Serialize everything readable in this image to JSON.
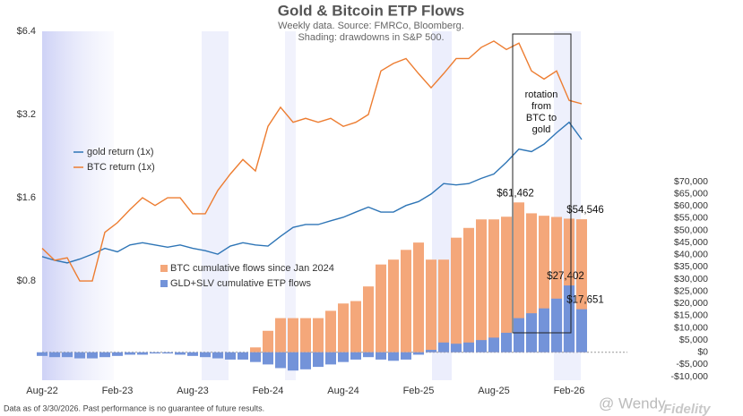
{
  "chart_data": {
    "type": "line",
    "title": "Gold & Bitcoin ETP Flows",
    "subtitle": [
      "Weekly data.  Source: FMRCo, Bloomberg.",
      "Shading: drawdowns in S&P 500."
    ],
    "categories": [
      "Aug-22",
      null,
      null,
      null,
      null,
      null,
      "Feb-23",
      null,
      null,
      null,
      null,
      null,
      "Aug-23",
      null,
      null,
      null,
      null,
      null,
      "Feb-24",
      null,
      null,
      null,
      null,
      null,
      "Aug-24",
      null,
      null,
      null,
      null,
      null,
      "Feb-25",
      null,
      null,
      null,
      null,
      null,
      "Aug-25",
      null,
      null,
      null,
      null,
      null,
      "Feb-26",
      null
    ],
    "log_scale": true,
    "ylim": [
      0.35,
      6.4
    ],
    "yticks": [
      {
        "value": 0.8,
        "label": "$0.8"
      },
      {
        "value": 1.6,
        "label": "$1.6"
      },
      {
        "value": 3.2,
        "label": "$3.2"
      },
      {
        "value": 6.4,
        "label": "$6.4"
      }
    ],
    "y2lim": [
      -10000,
      70000
    ],
    "y2ticks": [
      {
        "value": -10000,
        "label": "-$10,000"
      },
      {
        "value": -5000,
        "label": "-$5,000"
      },
      {
        "value": 0,
        "label": "$0"
      },
      {
        "value": 5000,
        "label": "$5,000"
      },
      {
        "value": 10000,
        "label": "$10,000"
      },
      {
        "value": 15000,
        "label": "$15,000"
      },
      {
        "value": 20000,
        "label": "$20,000"
      },
      {
        "value": 25000,
        "label": "$25,000"
      },
      {
        "value": 30000,
        "label": "$30,000"
      },
      {
        "value": 35000,
        "label": "$35,000"
      },
      {
        "value": 40000,
        "label": "$40,000"
      },
      {
        "value": 45000,
        "label": "$45,000"
      },
      {
        "value": 50000,
        "label": "$50,000"
      },
      {
        "value": 55000,
        "label": "$55,000"
      },
      {
        "value": 60000,
        "label": "$60,000"
      },
      {
        "value": 65000,
        "label": "$65,000"
      },
      {
        "value": 70000,
        "label": "$70,000"
      }
    ],
    "series": [
      {
        "name": "gold return (1x)",
        "type": "line",
        "color": "#2e75b6",
        "values": [
          0.98,
          0.95,
          0.93,
          0.96,
          1.0,
          1.05,
          1.02,
          1.08,
          1.1,
          1.08,
          1.06,
          1.08,
          1.05,
          1.03,
          1.0,
          1.07,
          1.1,
          1.08,
          1.07,
          1.16,
          1.25,
          1.28,
          1.28,
          1.32,
          1.36,
          1.42,
          1.48,
          1.42,
          1.42,
          1.5,
          1.55,
          1.65,
          1.8,
          1.78,
          1.8,
          1.88,
          1.95,
          2.15,
          2.4,
          2.35,
          2.5,
          2.75,
          3.0,
          2.6
        ]
      },
      {
        "name": "BTC return (1x)",
        "type": "line",
        "color": "#ed7d31",
        "values": [
          1.05,
          0.95,
          0.97,
          0.8,
          0.8,
          1.2,
          1.3,
          1.45,
          1.6,
          1.5,
          1.6,
          1.6,
          1.4,
          1.4,
          1.7,
          1.95,
          2.2,
          2.0,
          2.9,
          3.4,
          3.0,
          3.1,
          3.0,
          3.1,
          2.9,
          3.0,
          3.2,
          4.6,
          4.9,
          5.1,
          4.5,
          4.0,
          4.5,
          5.1,
          5.1,
          5.6,
          5.9,
          5.5,
          5.8,
          4.6,
          4.3,
          4.6,
          3.6,
          3.5
        ]
      },
      {
        "name": "BTC cumulative flows since Jan 2024",
        "type": "bar",
        "axis": "y2",
        "color": "#f4a77a",
        "values": [
          null,
          null,
          null,
          null,
          null,
          null,
          null,
          null,
          null,
          null,
          null,
          null,
          null,
          null,
          null,
          null,
          null,
          2000,
          8800,
          14000,
          14000,
          14000,
          14000,
          17000,
          20000,
          21000,
          27000,
          36000,
          38000,
          42000,
          45000,
          38000,
          38000,
          47000,
          51000,
          54500,
          54500,
          55600,
          61462,
          57000,
          56000,
          55500,
          54800,
          54546
        ],
        "value_labels": [
          null,
          null,
          null,
          null,
          null,
          null,
          null,
          null,
          null,
          null,
          null,
          null,
          null,
          null,
          null,
          null,
          null,
          null,
          null,
          null,
          null,
          null,
          null,
          null,
          null,
          null,
          null,
          null,
          null,
          null,
          null,
          null,
          null,
          null,
          null,
          null,
          null,
          null,
          "$61,462",
          null,
          null,
          null,
          null,
          "$54,546"
        ]
      },
      {
        "name": "GLD+SLV cumulative ETP flows",
        "type": "bar",
        "axis": "y2",
        "color": "#7393d9",
        "values": [
          -1500,
          -2000,
          -2000,
          -2500,
          -2500,
          -2000,
          -1500,
          -1000,
          -1000,
          -500,
          -500,
          -1000,
          -1500,
          -2000,
          -2500,
          -3000,
          -3000,
          -4000,
          -5000,
          -6500,
          -7500,
          -7000,
          -6000,
          -5000,
          -4000,
          -3000,
          -2000,
          -3000,
          -3500,
          -3000,
          -1000,
          1000,
          4000,
          3500,
          4000,
          5000,
          6000,
          8000,
          14000,
          16000,
          18000,
          22000,
          27402,
          17651
        ],
        "value_labels": [
          null,
          null,
          null,
          null,
          null,
          null,
          null,
          null,
          null,
          null,
          null,
          null,
          null,
          null,
          null,
          null,
          null,
          null,
          null,
          null,
          null,
          null,
          null,
          null,
          null,
          null,
          null,
          null,
          null,
          null,
          null,
          null,
          null,
          null,
          null,
          null,
          null,
          null,
          null,
          null,
          null,
          null,
          "$27,402",
          "$17,651"
        ]
      }
    ],
    "annotation": [
      "rotation",
      "from",
      "BTC to",
      "gold"
    ],
    "footer": "Data as of 3/30/2026. Past performance is no guarantee of future results.",
    "watermark": "@ Wendy",
    "logo": "Fidelity"
  }
}
